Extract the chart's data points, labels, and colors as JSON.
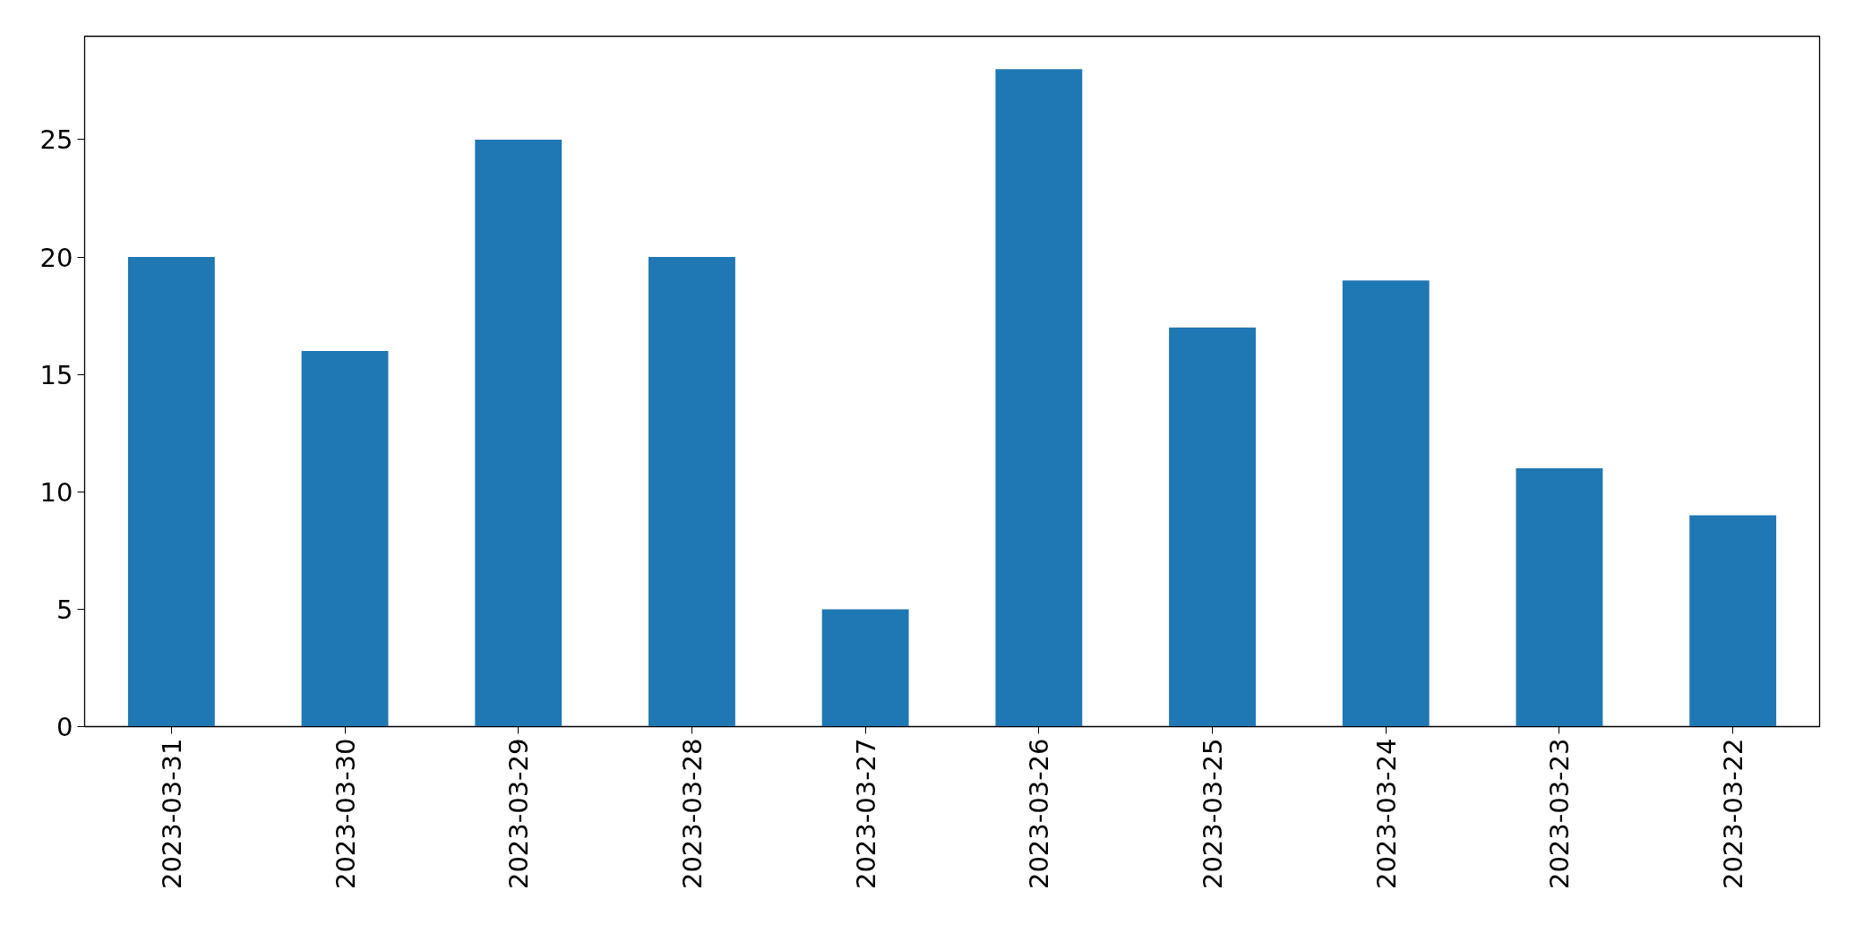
{
  "chart_data": {
    "type": "bar",
    "categories": [
      "2023-03-31",
      "2023-03-30",
      "2023-03-29",
      "2023-03-28",
      "2023-03-27",
      "2023-03-26",
      "2023-03-25",
      "2023-03-24",
      "2023-03-23",
      "2023-03-22"
    ],
    "values": [
      20,
      16,
      25,
      20,
      5,
      28,
      17,
      19,
      11,
      9
    ],
    "color": "#1f77b4",
    "ylim": [
      0,
      29.4
    ],
    "yticks": [
      0,
      5,
      10,
      15,
      20,
      25
    ],
    "grid": false
  }
}
